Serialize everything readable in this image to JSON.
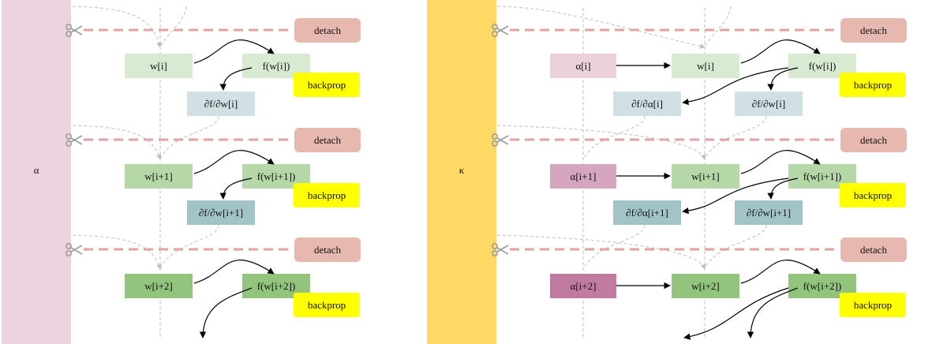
{
  "panels": [
    {
      "id": "left",
      "sidebar": {
        "label": "α",
        "color": "#ebd3df"
      },
      "alpha_boxes": [],
      "w_boxes": [
        "w[i]",
        "w[i+1]",
        "w[i+2]"
      ],
      "f_boxes": [
        "f(w[i])",
        "f(w[i+1])",
        "f(w[i+2])"
      ],
      "grad_w_boxes": [
        "∂f/∂w[i]",
        "∂f/∂w[i+1]"
      ],
      "grad_a_boxes": []
    },
    {
      "id": "right",
      "sidebar": {
        "label": "κ",
        "color": "#fed966"
      },
      "alpha_boxes": [
        "α[i]",
        "α[i+1]",
        "α[i+2]"
      ],
      "w_boxes": [
        "w[i]",
        "w[i+1]",
        "w[i+2]"
      ],
      "f_boxes": [
        "f(w[i])",
        "f(w[i+1])",
        "f(w[i+2])"
      ],
      "grad_w_boxes": [
        "∂f/∂w[i]",
        "∂f/∂w[i+1]"
      ],
      "grad_a_boxes": [
        "∂f/∂α[i]",
        "∂f/∂α[i+1]"
      ]
    }
  ],
  "labels": {
    "detach": "detach",
    "backprop": "backprop"
  },
  "colors": {
    "w": [
      "#d9ead3",
      "#b6d7a8",
      "#93c47d"
    ],
    "alpha": [
      "#ead1dc",
      "#d5a6bd",
      "#c27ba0"
    ],
    "grad": [
      "#d0e0e3",
      "#a2c4c9"
    ],
    "detach": "#e6b8af",
    "detach_line": "#e6a0a0",
    "backprop": "#ffff00",
    "scissors": "#9e9e9e"
  },
  "icons": {
    "cut": "scissors-icon"
  }
}
